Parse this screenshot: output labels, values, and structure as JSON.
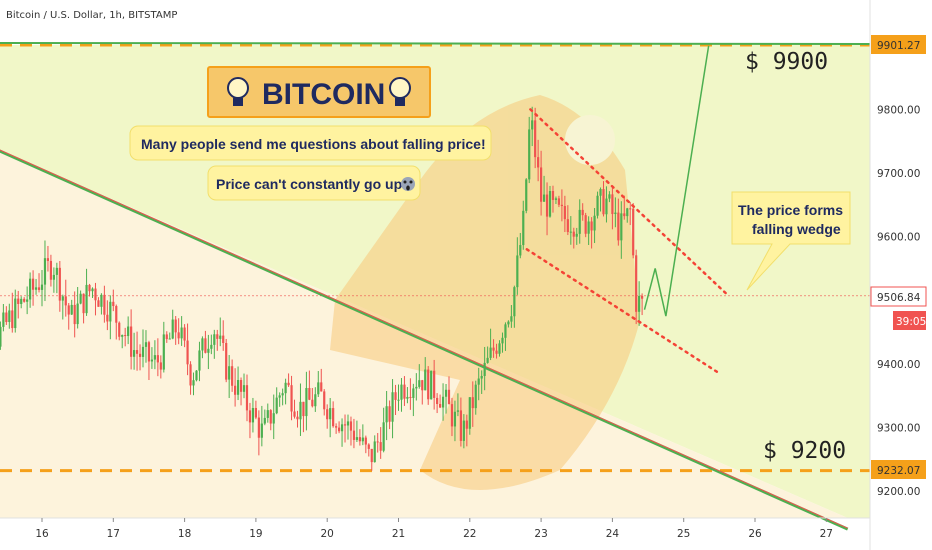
{
  "header": {
    "symbol": "Bitcoin / U.S. Dollar, 1h, BITSTAMP"
  },
  "banner": {
    "title": "BITCOIN",
    "note1": "Many people send me questions about falling price!",
    "note2": "Price can't constantly go up",
    "note3_line1": "The price forms",
    "note3_line2": "falling wedge"
  },
  "labels": {
    "target_high": "$ 9900",
    "target_low": "$ 9200"
  },
  "price_tags": {
    "resistance": "9901.27",
    "current": "9506.84",
    "countdown": "39:05",
    "support": "9232.07"
  },
  "colors": {
    "bull": "#4caf50",
    "bear": "#ef5350",
    "support_line": "#f5a01a",
    "trend_line": "#4caf50",
    "wedge": "#f44336",
    "zone_green": "#f1f7c8",
    "zone_orange": "#fdf3dc",
    "current_tag": "#f05350"
  },
  "chart_data": {
    "type": "candlestick",
    "xlabel": "",
    "ylabel": "",
    "ylim": [
      9140,
      9945
    ],
    "x_ticks": [
      "16",
      "17",
      "18",
      "19",
      "20",
      "21",
      "22",
      "23",
      "24",
      "25",
      "26",
      "27"
    ],
    "y_ticks": [
      "9200.00",
      "9300.00",
      "9400.00",
      "9500.00",
      "9600.00",
      "9700.00",
      "9800.00"
    ],
    "levels": {
      "resistance": 9901.27,
      "support": 9232.07,
      "current": 9506.84
    },
    "candle_anchors": [
      [
        "15",
        9160
      ],
      [
        "15.3",
        9430
      ],
      [
        "15.6",
        9480
      ],
      [
        "15.9",
        9520
      ],
      [
        "16.15",
        9560
      ],
      [
        "16.4",
        9470
      ],
      [
        "16.7",
        9520
      ],
      [
        "17",
        9480
      ],
      [
        "17.3",
        9420
      ],
      [
        "17.6",
        9400
      ],
      [
        "17.9",
        9460
      ],
      [
        "18.1",
        9380
      ],
      [
        "18.4",
        9460
      ],
      [
        "18.6",
        9390
      ],
      [
        "18.9",
        9330
      ],
      [
        "19.1",
        9290
      ],
      [
        "19.4",
        9370
      ],
      [
        "19.6",
        9330
      ],
      [
        "19.9",
        9350
      ],
      [
        "20.1",
        9320
      ],
      [
        "20.4",
        9290
      ],
      [
        "20.6",
        9250
      ],
      [
        "20.8",
        9300
      ],
      [
        "21.0",
        9360
      ],
      [
        "21.3",
        9380
      ],
      [
        "21.6",
        9350
      ],
      [
        "21.9",
        9290
      ],
      [
        "22.1",
        9360
      ],
      [
        "22.4",
        9440
      ],
      [
        "22.6",
        9500
      ],
      [
        "22.75",
        9620
      ],
      [
        "22.85",
        9790
      ],
      [
        "23.0",
        9660
      ],
      [
        "23.3",
        9630
      ],
      [
        "23.6",
        9620
      ],
      [
        "23.9",
        9660
      ],
      [
        "24.1",
        9610
      ],
      [
        "24.25",
        9640
      ],
      [
        "24.33",
        9500
      ],
      [
        "24.45",
        9490
      ]
    ],
    "projection": [
      [
        "24.45",
        9485
      ],
      [
        "24.6",
        9550
      ],
      [
        "24.75",
        9475
      ],
      [
        "25.35",
        9900
      ]
    ],
    "trendline": [
      [
        "15.0",
        9755
      ],
      [
        "27.3",
        9140
      ]
    ],
    "wedge_upper": [
      [
        "22.85",
        9800
      ],
      [
        "25.6",
        9510
      ]
    ],
    "wedge_lower": [
      [
        "22.8",
        9580
      ],
      [
        "25.5",
        9385
      ]
    ]
  }
}
